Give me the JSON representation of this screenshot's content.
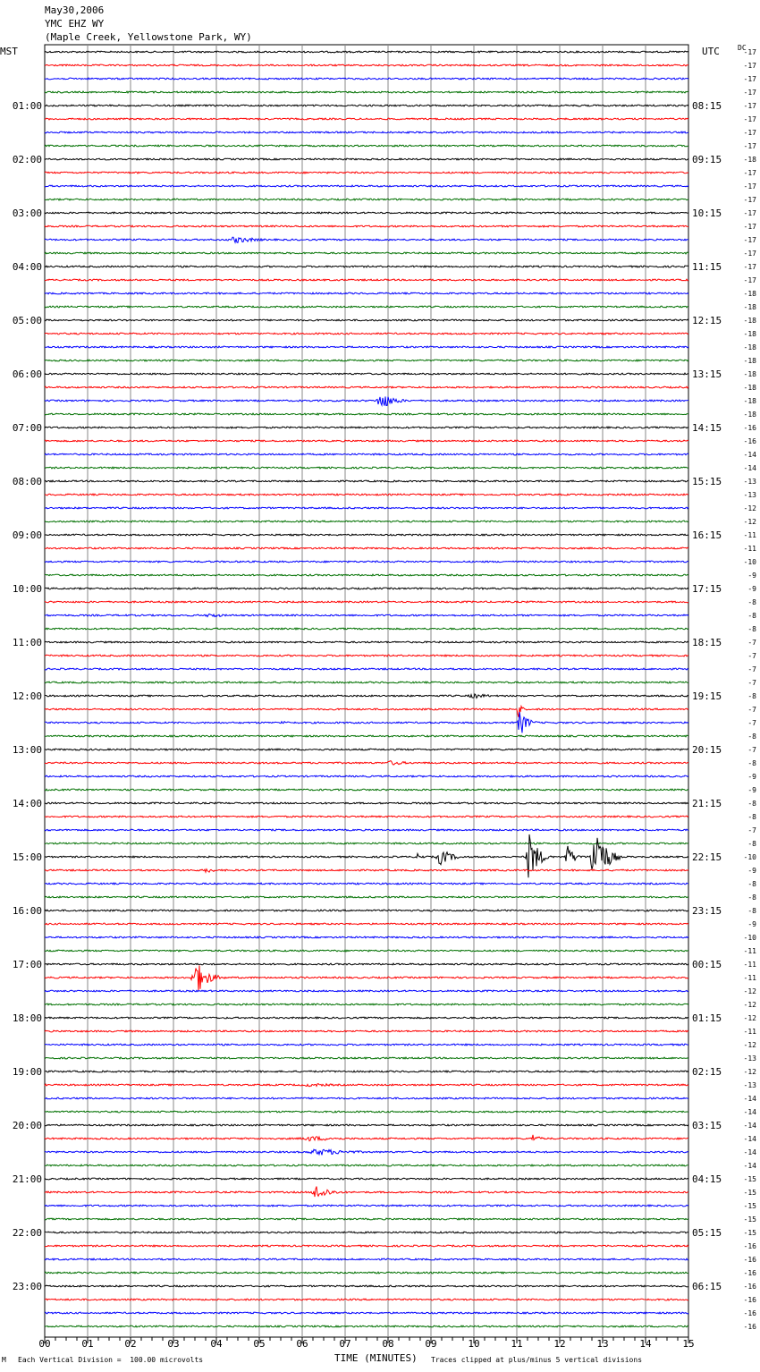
{
  "header": {
    "date": "May30,2006",
    "station": "YMC EHZ WY",
    "location": "(Maple Creek, Yellowstone Park, WY)"
  },
  "labels": {
    "left_timezone": "MST",
    "right_timezone": "UTC",
    "dc_label": "DC"
  },
  "footer": {
    "scale_note": "Each Vertical Division =  100.00 microvolts",
    "clip_note": "Traces clipped at plus/minus 5 vertical divisions",
    "corner_mark": "M"
  },
  "chart_data": {
    "type": "line",
    "title": "",
    "xlabel": "TIME (MINUTES)",
    "xlim": [
      0,
      15
    ],
    "x_ticks": [
      "00",
      "01",
      "02",
      "03",
      "04",
      "05",
      "06",
      "07",
      "08",
      "09",
      "10",
      "11",
      "12",
      "13",
      "14",
      "15"
    ],
    "rows_per_hour": 4,
    "row_colors": [
      "#000000",
      "#ff0000",
      "#0000ff",
      "#007000"
    ],
    "hour_labels_mst": [
      "",
      "01:00",
      "02:00",
      "03:00",
      "04:00",
      "05:00",
      "06:00",
      "07:00",
      "08:00",
      "09:00",
      "10:00",
      "11:00",
      "12:00",
      "13:00",
      "14:00",
      "15:00",
      "16:00",
      "17:00",
      "18:00",
      "19:00",
      "20:00",
      "21:00",
      "22:00",
      "23:00"
    ],
    "hour_labels_utc": [
      "",
      "08:15",
      "09:15",
      "10:15",
      "11:15",
      "12:15",
      "13:15",
      "14:15",
      "15:15",
      "16:15",
      "17:15",
      "18:15",
      "19:15",
      "20:15",
      "21:15",
      "22:15",
      "23:15",
      "00:15",
      "01:15",
      "02:15",
      "03:15",
      "04:15",
      "05:15",
      "06:15"
    ],
    "dc_offsets": [
      -17,
      -17,
      -17,
      -17,
      -17,
      -17,
      -17,
      -17,
      -18,
      -17,
      -17,
      -17,
      -17,
      -17,
      -17,
      -17,
      -17,
      -17,
      -18,
      -18,
      -18,
      -18,
      -18,
      -18,
      -18,
      -18,
      -18,
      -18,
      -16,
      -16,
      -14,
      -14,
      -13,
      -13,
      -12,
      -12,
      -11,
      -11,
      -10,
      -9,
      -9,
      -8,
      -8,
      -8,
      -7,
      -7,
      -7,
      -7,
      -8,
      -7,
      -7,
      -8,
      -7,
      -8,
      -9,
      -9,
      -8,
      -8,
      -7,
      -8,
      -10,
      -9,
      -8,
      -8,
      -8,
      -9,
      -10,
      -11,
      -11,
      -11,
      -12,
      -12,
      -12,
      -11,
      -12,
      -13,
      -12,
      -13,
      -14,
      -14,
      -14,
      -14,
      -14,
      -14,
      -15,
      -15,
      -15,
      -15,
      -15,
      -16,
      -16,
      -16,
      -16,
      -16,
      -16,
      -16
    ],
    "events": [
      {
        "row": 14,
        "minute": 4.2,
        "amp": 4,
        "dur": 1.6
      },
      {
        "row": 26,
        "minute": 7.7,
        "amp": 10,
        "dur": 0.9
      },
      {
        "row": 27,
        "minute": 6.3,
        "amp": 3,
        "dur": 0.4
      },
      {
        "row": 42,
        "minute": 3.7,
        "amp": 3,
        "dur": 1.0
      },
      {
        "row": 48,
        "minute": 9.8,
        "amp": 3,
        "dur": 1.3
      },
      {
        "row": 49,
        "minute": 11.0,
        "amp": 14,
        "dur": 0.2
      },
      {
        "row": 50,
        "minute": 5.5,
        "amp": 4,
        "dur": 0.3
      },
      {
        "row": 50,
        "minute": 11.0,
        "amp": 16,
        "dur": 0.5
      },
      {
        "row": 53,
        "minute": 7.9,
        "amp": 3,
        "dur": 1.2
      },
      {
        "row": 60,
        "minute": 8.6,
        "amp": 4,
        "dur": 0.5
      },
      {
        "row": 60,
        "minute": 9.1,
        "amp": 10,
        "dur": 0.8
      },
      {
        "row": 60,
        "minute": 11.2,
        "amp": 30,
        "dur": 0.6
      },
      {
        "row": 60,
        "minute": 12.1,
        "amp": 14,
        "dur": 0.5
      },
      {
        "row": 60,
        "minute": 12.7,
        "amp": 45,
        "dur": 0.7
      },
      {
        "row": 61,
        "minute": 3.7,
        "amp": 4,
        "dur": 0.5
      },
      {
        "row": 69,
        "minute": 3.4,
        "amp": 20,
        "dur": 0.8
      },
      {
        "row": 77,
        "minute": 5.8,
        "amp": 2,
        "dur": 2.6
      },
      {
        "row": 81,
        "minute": 5.8,
        "amp": 3,
        "dur": 2.5
      },
      {
        "row": 81,
        "minute": 11.3,
        "amp": 5,
        "dur": 0.5
      },
      {
        "row": 82,
        "minute": 6.0,
        "amp": 4,
        "dur": 2.5
      },
      {
        "row": 85,
        "minute": 6.2,
        "amp": 9,
        "dur": 0.9
      }
    ]
  }
}
